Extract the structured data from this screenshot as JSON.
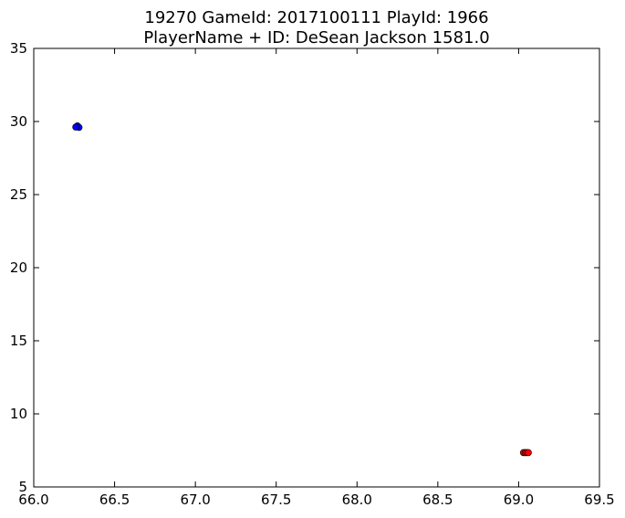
{
  "chart_data": {
    "type": "scatter",
    "title_line1": "19270 GameId: 2017100111 PlayId: 1966",
    "title_line2": "PlayerName + ID: DeSean Jackson 1581.0",
    "xlim": [
      66.0,
      69.5
    ],
    "ylim": [
      5,
      35
    ],
    "x_ticks": [
      66.0,
      66.5,
      67.0,
      67.5,
      68.0,
      68.5,
      69.0,
      69.5
    ],
    "x_tick_labels": [
      "66.0",
      "66.5",
      "67.0",
      "67.5",
      "68.0",
      "68.5",
      "69.0",
      "69.5"
    ],
    "y_ticks": [
      5,
      10,
      15,
      20,
      25,
      30,
      35
    ],
    "y_tick_labels": [
      "5",
      "10",
      "15",
      "20",
      "25",
      "30",
      "35"
    ],
    "grid": false,
    "series": [
      {
        "color": "#0000ff",
        "points": [
          {
            "x": 66.27,
            "y": 29.65
          },
          {
            "x": 66.27,
            "y": 29.7
          },
          {
            "x": 66.28,
            "y": 29.6
          },
          {
            "x": 66.26,
            "y": 29.62
          }
        ]
      },
      {
        "color": "#ff0000",
        "points": [
          {
            "x": 69.03,
            "y": 7.35
          },
          {
            "x": 69.04,
            "y": 7.35
          },
          {
            "x": 69.05,
            "y": 7.35
          },
          {
            "x": 69.06,
            "y": 7.35
          }
        ]
      }
    ]
  }
}
